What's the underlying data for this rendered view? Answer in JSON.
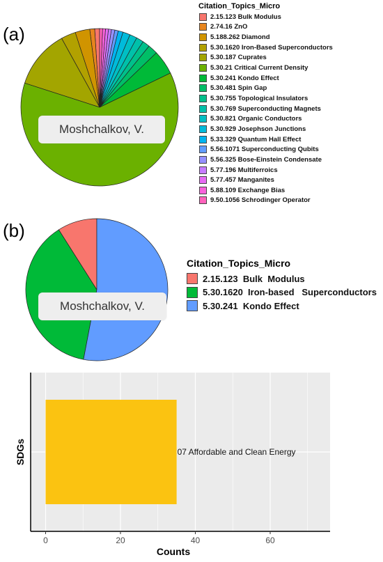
{
  "panels": {
    "a_label": "(a)",
    "b_label": "(b)"
  },
  "chart_data": [
    {
      "type": "pie",
      "panel": "(a)",
      "annotation": "Moshchalkov, V.",
      "legend_title": "Citation_Topics_Micro",
      "legend_position": "right",
      "slices": [
        {
          "label": "2.15.123 Bulk Modulus",
          "value": 1,
          "color": "#F8766D"
        },
        {
          "label": "2.74.16 ZnO",
          "value": 1,
          "color": "#E7851E"
        },
        {
          "label": "5.188.262 Diamond",
          "value": 3,
          "color": "#D09400"
        },
        {
          "label": "5.30.1620 Iron-Based Superconductors",
          "value": 3,
          "color": "#B2A100"
        },
        {
          "label": "5.30.187 Cuprates",
          "value": 12,
          "color": "#A3A500"
        },
        {
          "label": "5.30.21 Critical Current Density",
          "value": 62,
          "color": "#6BB100"
        },
        {
          "label": "5.30.241 Kondo Effect",
          "value": 5,
          "color": "#00BA38"
        },
        {
          "label": "5.30.481 Spin Gap",
          "value": 2,
          "color": "#00BE67"
        },
        {
          "label": "5.30.755 Topological Insulators",
          "value": 1.5,
          "color": "#00C08B"
        },
        {
          "label": "5.30.769 Superconducting Magnets",
          "value": 1.5,
          "color": "#00C1AA"
        },
        {
          "label": "5.30.821 Organic Conductors",
          "value": 1.5,
          "color": "#00BFC4"
        },
        {
          "label": "5.30.929 Josephson Junctions",
          "value": 1.5,
          "color": "#00BBDB"
        },
        {
          "label": "5.33.329 Quantum Hall Effect",
          "value": 1,
          "color": "#00B4F0"
        },
        {
          "label": "5.56.1071 Superconducting Qubits",
          "value": 0.7,
          "color": "#619CFF"
        },
        {
          "label": "5.56.325 Bose-Einstein Condensate",
          "value": 0.7,
          "color": "#9590FF"
        },
        {
          "label": "5.77.196 Multiferroics",
          "value": 0.6,
          "color": "#C77CFF"
        },
        {
          "label": "5.77.457 Manganites",
          "value": 0.6,
          "color": "#E76BF3"
        },
        {
          "label": "5.88.109 Exchange Bias",
          "value": 0.6,
          "color": "#FA62DB"
        },
        {
          "label": "9.50.1056 Schrodinger Operator",
          "value": 0.6,
          "color": "#FF62BC"
        }
      ]
    },
    {
      "type": "pie",
      "panel": "(b)",
      "annotation": "Moshchalkov, V.",
      "legend_title": "Citation_Topics_Micro",
      "legend_position": "right",
      "slices": [
        {
          "label": "2.15.123  Bulk  Modulus",
          "value": 9,
          "color": "#F8766D"
        },
        {
          "label": "5.30.1620  Iron-based   Superconductors",
          "value": 38,
          "color": "#00BA38"
        },
        {
          "label": "5.30.241  Kondo Effect",
          "value": 53,
          "color": "#619CFF"
        }
      ]
    },
    {
      "type": "bar",
      "orientation": "horizontal",
      "categories": [
        "07 Affordable and Clean Energy"
      ],
      "values": [
        35
      ],
      "bar_color": "#FBC311",
      "xlabel": "Counts",
      "ylabel": "SDGs",
      "xlim": [
        -4,
        76
      ],
      "xticks": [
        0,
        20,
        40,
        60
      ],
      "grid": true,
      "background": "#EBEBEB"
    }
  ]
}
